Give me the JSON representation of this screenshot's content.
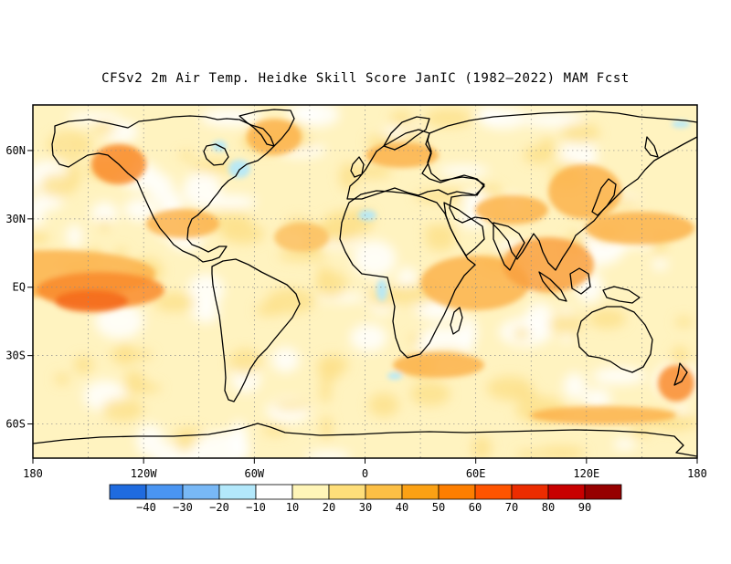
{
  "title": "CFSv2 2m Air Temp. Heidke Skill Score JanIC (1982–2022) MAM Fcst",
  "lon_ticks": [
    "180",
    "120W",
    "60W",
    "0",
    "60E",
    "120E",
    "180"
  ],
  "lat_ticks": [
    "60N",
    "30N",
    "EQ",
    "30S",
    "60S"
  ],
  "colorbar": {
    "colors": [
      "#1f6bdf",
      "#4a95f2",
      "#78b8f6",
      "#b3e8fb",
      "#ffffff",
      "#fff5b8",
      "#fede7a",
      "#fcbf45",
      "#fba114",
      "#fd7e00",
      "#ff5400",
      "#ec2c00",
      "#c80000",
      "#960000"
    ],
    "labels": [
      "−40",
      "−30",
      "−20",
      "−10",
      "10",
      "20",
      "30",
      "40",
      "50",
      "60",
      "70",
      "80",
      "90"
    ]
  },
  "grid": {
    "lon_step_deg": 30,
    "lat_step_deg": 30,
    "style": "dotted"
  },
  "map_extent": {
    "lon": [
      -180,
      180
    ],
    "lat": [
      -75,
      80
    ]
  }
}
